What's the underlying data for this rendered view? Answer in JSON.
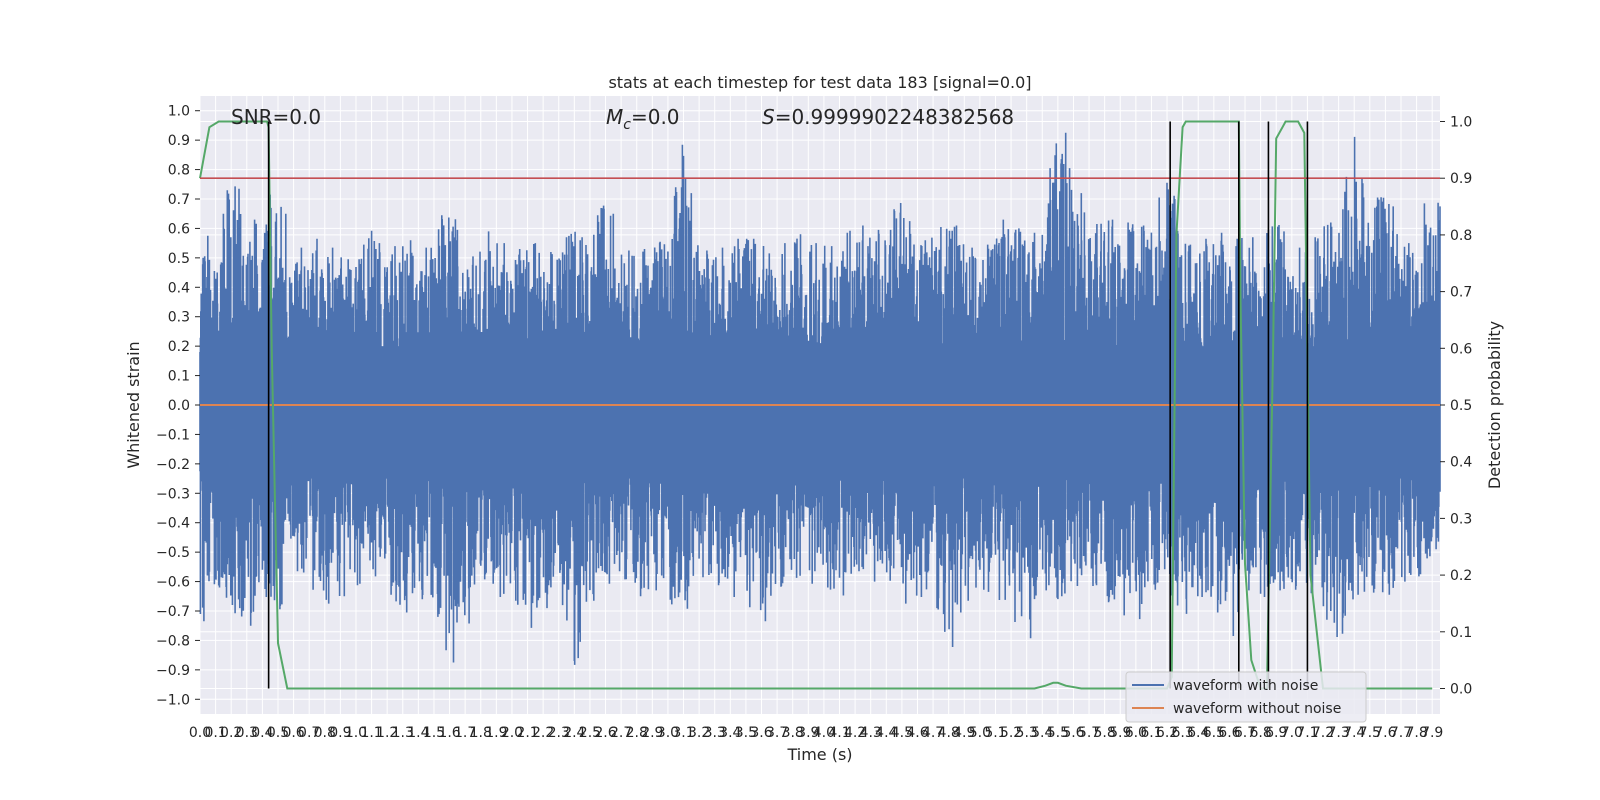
{
  "chart_data": {
    "type": "line",
    "title": "stats at each timestep for test data 183 [signal=0.0]",
    "xlabel": "Time (s)",
    "ylabel": "Whitened strain",
    "y2label": "Detection probability",
    "xlim": [
      0.0,
      7.95
    ],
    "ylim": [
      -1.05,
      1.05
    ],
    "y2lim": [
      -0.045,
      1.045
    ],
    "x_ticks": [
      0.0,
      0.1,
      0.2,
      0.3,
      0.4,
      0.5,
      0.6,
      0.7,
      0.8,
      0.9,
      1.0,
      1.1,
      1.2,
      1.3,
      1.4,
      1.5,
      1.6,
      1.7,
      1.8,
      1.9,
      2.0,
      2.1,
      2.2,
      2.3,
      2.4,
      2.5,
      2.6,
      2.7,
      2.8,
      2.9,
      3.0,
      3.1,
      3.2,
      3.3,
      3.4,
      3.5,
      3.6,
      3.7,
      3.8,
      3.9,
      4.0,
      4.1,
      4.2,
      4.3,
      4.4,
      4.5,
      4.6,
      4.7,
      4.8,
      4.9,
      5.0,
      5.1,
      5.2,
      5.3,
      5.4,
      5.5,
      5.6,
      5.7,
      5.8,
      5.9,
      6.0,
      6.1,
      6.2,
      6.3,
      6.4,
      6.5,
      6.6,
      6.7,
      6.8,
      6.9,
      7.0,
      7.1,
      7.2,
      7.3,
      7.4,
      7.5,
      7.6,
      7.7,
      7.8,
      7.9
    ],
    "x_tick_labels": [
      "0.0",
      "0.1",
      "0.2",
      "0.3",
      "0.4",
      "0.5",
      "0.6",
      "0.7",
      "0.8",
      "0.9",
      "1.0",
      "1.1",
      "1.2",
      "1.3",
      "1.4",
      "1.5",
      "1.6",
      "1.7",
      "1.8",
      "1.9",
      "2.0",
      "2.1",
      "2.2",
      "2.3",
      "2.4",
      "2.5",
      "2.6",
      "2.7",
      "2.8",
      "2.9",
      "3.0",
      "3.1",
      "3.2",
      "3.3",
      "3.4",
      "3.5",
      "3.6",
      "3.7",
      "3.8",
      "3.9",
      "4.0",
      "4.1",
      "4.2",
      "4.3",
      "4.4",
      "4.5",
      "4.6",
      "4.7",
      "4.8",
      "4.9",
      "5.0",
      "5.1",
      "5.2",
      "5.3",
      "5.4",
      "5.5",
      "5.6",
      "5.7",
      "5.8",
      "5.9",
      "6.0",
      "6.1",
      "6.2",
      "6.3",
      "6.4",
      "6.5",
      "6.6",
      "6.7",
      "6.8",
      "6.9",
      "7.0",
      "7.1",
      "7.2",
      "7.3",
      "7.4",
      "7.5",
      "7.6",
      "7.7",
      "7.8",
      "7.9"
    ],
    "y_ticks": [
      -1.0,
      -0.9,
      -0.8,
      -0.7,
      -0.6,
      -0.5,
      -0.4,
      -0.3,
      -0.2,
      -0.1,
      0.0,
      0.1,
      0.2,
      0.3,
      0.4,
      0.5,
      0.6,
      0.7,
      0.8,
      0.9,
      1.0
    ],
    "y_tick_labels": [
      "−1.0",
      "−0.9",
      "−0.8",
      "−0.7",
      "−0.6",
      "−0.5",
      "−0.4",
      "−0.3",
      "−0.2",
      "−0.1",
      "0.0",
      "0.1",
      "0.2",
      "0.3",
      "0.4",
      "0.5",
      "0.6",
      "0.7",
      "0.8",
      "0.9",
      "1.0"
    ],
    "y2_ticks": [
      0.0,
      0.1,
      0.2,
      0.3,
      0.4,
      0.5,
      0.6,
      0.7,
      0.8,
      0.9,
      1.0
    ],
    "y2_tick_labels": [
      "0.0",
      "0.1",
      "0.2",
      "0.3",
      "0.4",
      "0.5",
      "0.6",
      "0.7",
      "0.8",
      "0.9",
      "1.0"
    ],
    "grid": true,
    "legend": "lower-right",
    "annotations": [
      {
        "text": "SNR=0.0"
      },
      {
        "text_italic": "M",
        "text_sub": "c",
        "text_rest": "=0.0"
      },
      {
        "text_italic": "S",
        "text_rest": "=0.9999902248382568"
      }
    ],
    "series": [
      {
        "name": "waveform with noise",
        "axis": "left",
        "color": "#4c72b0",
        "envelope_sample_step": 0.1,
        "upper_envelope": [
          0.68,
          0.47,
          0.83,
          0.64,
          0.62,
          0.81,
          0.49,
          0.58,
          0.55,
          0.52,
          0.47,
          0.62,
          0.48,
          0.6,
          0.52,
          0.55,
          0.74,
          0.45,
          0.56,
          0.62,
          0.48,
          0.58,
          0.52,
          0.52,
          0.62,
          0.52,
          0.77,
          0.53,
          0.52,
          0.54,
          0.57,
          0.91,
          0.53,
          0.52,
          0.55,
          0.58,
          0.55,
          0.48,
          0.62,
          0.54,
          0.56,
          0.52,
          0.65,
          0.57,
          0.62,
          0.71,
          0.54,
          0.58,
          0.63,
          0.59,
          0.48,
          0.61,
          0.65,
          0.55,
          0.62,
          0.99,
          0.86,
          0.58,
          0.65,
          0.61,
          0.63,
          0.59,
          0.82,
          0.58,
          0.51,
          0.62,
          0.55,
          0.58,
          0.56,
          0.63,
          0.55,
          0.52,
          0.62,
          0.62,
          0.93,
          0.61,
          0.8,
          0.55,
          0.55,
          0.82,
          0.53
        ],
        "lower_envelope": [
          -0.78,
          -0.6,
          -0.68,
          -0.79,
          -0.63,
          -0.72,
          -0.55,
          -0.61,
          -0.68,
          -0.66,
          -0.62,
          -0.57,
          -0.62,
          -0.72,
          -0.66,
          -0.66,
          -0.9,
          -0.8,
          -0.57,
          -0.66,
          -0.63,
          -0.77,
          -0.72,
          -0.6,
          -0.92,
          -0.68,
          -0.62,
          -0.57,
          -0.66,
          -0.62,
          -0.66,
          -0.73,
          -0.58,
          -0.6,
          -0.65,
          -0.66,
          -0.77,
          -0.63,
          -0.58,
          -0.61,
          -0.6,
          -0.68,
          -0.55,
          -0.61,
          -0.57,
          -0.68,
          -0.66,
          -0.63,
          -0.87,
          -0.68,
          -0.62,
          -0.65,
          -0.7,
          -0.85,
          -0.62,
          -0.66,
          -0.62,
          -0.6,
          -0.66,
          -0.7,
          -0.76,
          -0.63,
          -0.62,
          -0.73,
          -0.65,
          -0.66,
          -0.84,
          -0.62,
          -0.66,
          -0.63,
          -0.63,
          -0.62,
          -0.7,
          -0.82,
          -0.65,
          -0.63,
          -0.66,
          -0.6,
          -0.6,
          -0.5,
          -0.46
        ]
      },
      {
        "name": "waveform without noise",
        "axis": "left",
        "color": "#dd8452",
        "x": [
          0.0,
          7.95
        ],
        "y": [
          0.0,
          0.0
        ]
      },
      {
        "name": "",
        "axis": "right",
        "color": "#55a868",
        "x": [
          0.0,
          0.06,
          0.12,
          0.2,
          0.3,
          0.4,
          0.43,
          0.44,
          0.46,
          0.5,
          0.56,
          0.6,
          1.0,
          2.0,
          3.0,
          4.0,
          5.0,
          5.35,
          5.42,
          5.47,
          5.5,
          5.55,
          5.65,
          6.0,
          6.1,
          6.2,
          6.23,
          6.26,
          6.3,
          6.32,
          6.34,
          6.4,
          6.5,
          6.6,
          6.66,
          6.67,
          6.7,
          6.74,
          6.8,
          6.84,
          6.88,
          6.9,
          6.94,
          6.96,
          7.0,
          7.04,
          7.08,
          7.12,
          7.2,
          7.3,
          7.5,
          7.7,
          7.9
        ],
        "y": [
          0.9,
          0.99,
          1.0,
          1.0,
          1.0,
          1.0,
          1.0,
          0.99,
          0.6,
          0.08,
          0.0,
          0.0,
          0.0,
          0.0,
          0.0,
          0.0,
          0.0,
          0.0,
          0.005,
          0.01,
          0.01,
          0.005,
          0.0,
          0.0,
          0.0,
          0.0,
          0.02,
          0.8,
          0.99,
          1.0,
          1.0,
          1.0,
          1.0,
          1.0,
          1.0,
          0.7,
          0.22,
          0.05,
          0.0,
          0.0,
          0.6,
          0.97,
          0.99,
          1.0,
          1.0,
          1.0,
          0.98,
          0.2,
          0.0,
          0.0,
          0.0,
          0.0,
          0.0
        ]
      },
      {
        "name": "",
        "axis": "right",
        "color": "#c44e52",
        "x": [
          0.0,
          7.95
        ],
        "y": [
          0.9,
          0.9
        ]
      }
    ],
    "vertical_lines": {
      "color": "#000000",
      "x": [
        0.44,
        6.22,
        6.66,
        6.85,
        7.1
      ],
      "y2_top": [
        1.0,
        1.0,
        1.0,
        1.0,
        1.0
      ]
    }
  }
}
